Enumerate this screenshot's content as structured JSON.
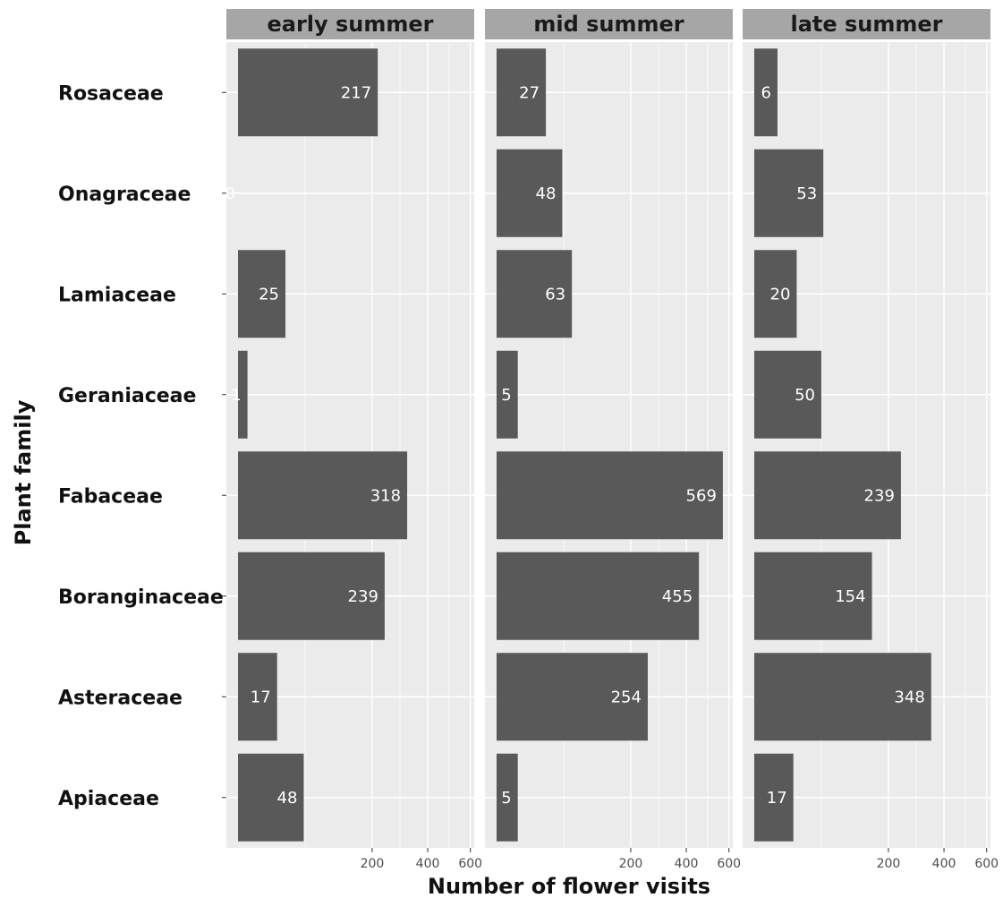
{
  "chart_data": {
    "type": "bar",
    "orientation": "horizontal",
    "xlabel": "Number of flower visits",
    "ylabel": "Plant family",
    "x_scale": "sqrt",
    "xlim": [
      0,
      620
    ],
    "xticks": [
      200,
      400,
      600
    ],
    "xtick_labels": [
      "200",
      "400",
      "600"
    ],
    "grid": true,
    "categories": [
      "Rosaceae",
      "Onagraceae",
      "Lamiaceae",
      "Geraniaceae",
      "Fabaceae",
      "Boranginaceae",
      "Asteraceae",
      "Apiaceae"
    ],
    "series": [
      {
        "name": "early summer",
        "values": [
          217,
          0,
          25,
          1,
          318,
          239,
          17,
          48
        ]
      },
      {
        "name": "mid summer",
        "values": [
          27,
          48,
          63,
          5,
          569,
          455,
          254,
          5
        ]
      },
      {
        "name": "late summer",
        "values": [
          6,
          53,
          20,
          50,
          239,
          154,
          348,
          17
        ]
      }
    ],
    "colors": {
      "bar": "#595959",
      "panel": "#ebebeb",
      "strip": "#a6a6a6",
      "grid": "#ffffff",
      "bar_label": "#ffffff"
    }
  }
}
